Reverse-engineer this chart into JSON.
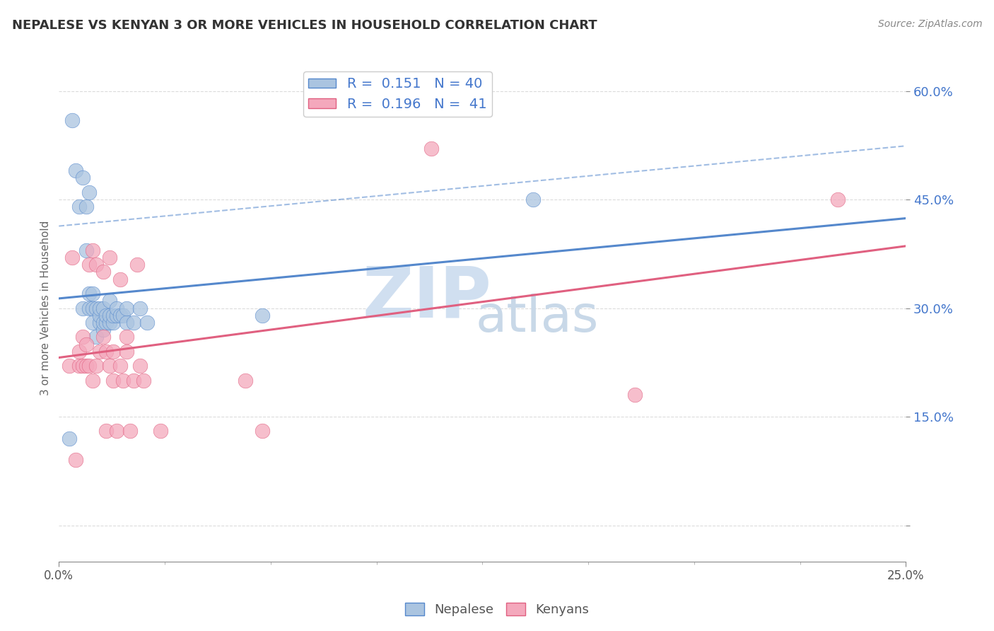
{
  "title": "NEPALESE VS KENYAN 3 OR MORE VEHICLES IN HOUSEHOLD CORRELATION CHART",
  "source": "Source: ZipAtlas.com",
  "ylabel": "3 or more Vehicles in Household",
  "R_nepalese": 0.151,
  "N_nepalese": 40,
  "R_kenyan": 0.196,
  "N_kenyan": 41,
  "nepalese_color": "#aac4e0",
  "kenyan_color": "#f4a8bc",
  "nepalese_line_color": "#5588cc",
  "kenyan_line_color": "#e06080",
  "bg_color": "#ffffff",
  "grid_color": "#cccccc",
  "title_color": "#333333",
  "axis_label_color": "#666666",
  "legend_text_color": "#4477cc",
  "ytick_color": "#4477cc",
  "xlim": [
    0.0,
    0.25
  ],
  "ylim": [
    -0.05,
    0.65
  ],
  "yticks": [
    0.0,
    0.15,
    0.3,
    0.45,
    0.6
  ],
  "ytick_labels": [
    "",
    "15.0%",
    "30.0%",
    "45.0%",
    "60.0%"
  ],
  "nepalese_x": [
    0.003,
    0.004,
    0.005,
    0.006,
    0.007,
    0.007,
    0.008,
    0.008,
    0.009,
    0.009,
    0.009,
    0.01,
    0.01,
    0.01,
    0.011,
    0.011,
    0.012,
    0.012,
    0.012,
    0.013,
    0.013,
    0.013,
    0.014,
    0.014,
    0.015,
    0.015,
    0.015,
    0.016,
    0.016,
    0.017,
    0.017,
    0.018,
    0.019,
    0.02,
    0.02,
    0.022,
    0.024,
    0.026,
    0.06,
    0.14
  ],
  "nepalese_y": [
    0.12,
    0.56,
    0.49,
    0.44,
    0.3,
    0.48,
    0.38,
    0.44,
    0.3,
    0.32,
    0.46,
    0.28,
    0.3,
    0.32,
    0.26,
    0.3,
    0.28,
    0.29,
    0.3,
    0.27,
    0.28,
    0.3,
    0.28,
    0.29,
    0.28,
    0.29,
    0.31,
    0.28,
    0.29,
    0.29,
    0.3,
    0.29,
    0.29,
    0.28,
    0.3,
    0.28,
    0.3,
    0.28,
    0.29,
    0.45
  ],
  "kenyan_x": [
    0.003,
    0.004,
    0.005,
    0.006,
    0.006,
    0.007,
    0.007,
    0.008,
    0.008,
    0.009,
    0.009,
    0.01,
    0.01,
    0.011,
    0.011,
    0.012,
    0.013,
    0.013,
    0.014,
    0.014,
    0.015,
    0.015,
    0.016,
    0.016,
    0.017,
    0.018,
    0.018,
    0.019,
    0.02,
    0.02,
    0.021,
    0.022,
    0.023,
    0.024,
    0.025,
    0.03,
    0.055,
    0.06,
    0.11,
    0.17,
    0.23
  ],
  "kenyan_y": [
    0.22,
    0.37,
    0.09,
    0.22,
    0.24,
    0.22,
    0.26,
    0.22,
    0.25,
    0.22,
    0.36,
    0.2,
    0.38,
    0.22,
    0.36,
    0.24,
    0.26,
    0.35,
    0.13,
    0.24,
    0.37,
    0.22,
    0.2,
    0.24,
    0.13,
    0.34,
    0.22,
    0.2,
    0.24,
    0.26,
    0.13,
    0.2,
    0.36,
    0.22,
    0.2,
    0.13,
    0.2,
    0.13,
    0.52,
    0.18,
    0.45
  ],
  "watermark_top": "ZIP",
  "watermark_bottom": "atlas",
  "watermark_color_top": "#d0dff0",
  "watermark_color_bottom": "#c8d8e8"
}
